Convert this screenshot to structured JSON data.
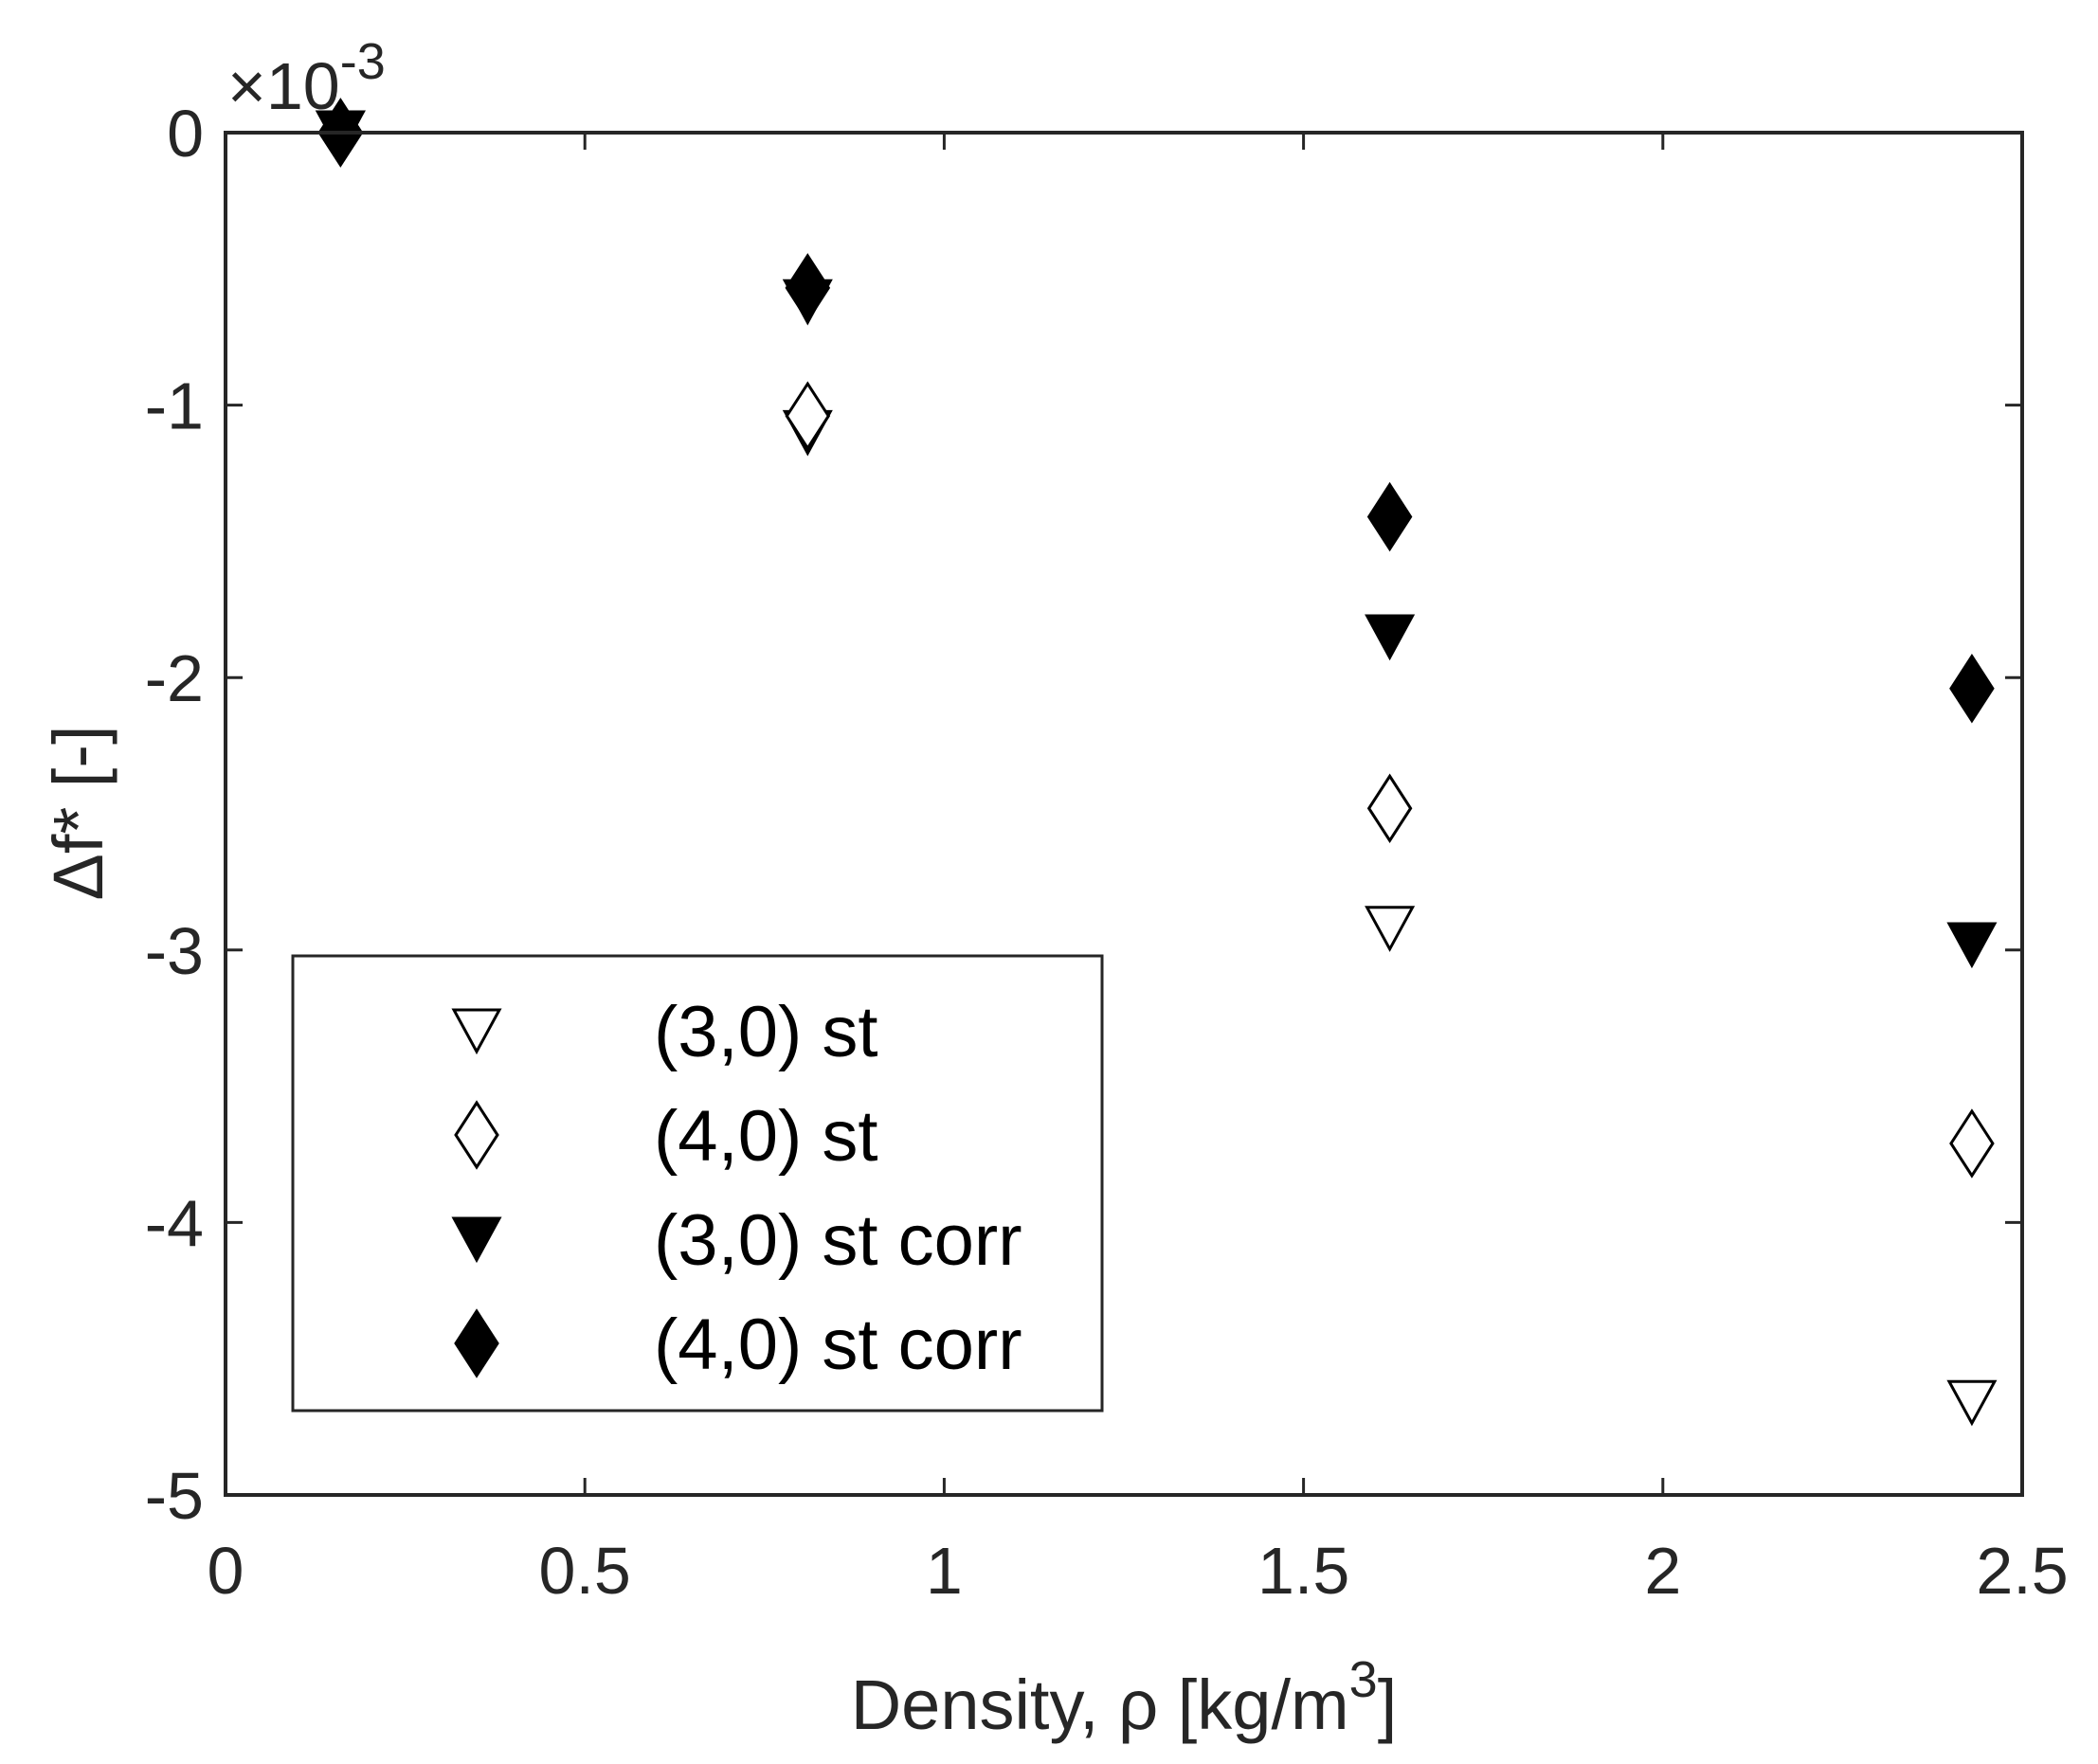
{
  "chart_data": {
    "type": "scatter",
    "title": "",
    "xlabel": "Density, ρ [kg/m",
    "xlabel_sup": "3",
    "xlabel_end": "]",
    "ylabel": "Δf* [-]",
    "y_multiplier": "×10",
    "y_multiplier_exp": "-3",
    "xlim": [
      0,
      2.5
    ],
    "ylim": [
      -5,
      0
    ],
    "xticks": [
      "0",
      "0.5",
      "1",
      "1.5",
      "2",
      "2.5"
    ],
    "yticks": [
      "0",
      "-1",
      "-2",
      "-3",
      "-4",
      "-5"
    ],
    "legend_position": "lower-left",
    "grid": false,
    "series": [
      {
        "name": "(3,0) st",
        "marker": "triangle-down",
        "filled": false,
        "x": [
          0.16,
          0.81,
          1.62,
          2.43
        ],
        "y": [
          0,
          -1.1,
          -2.92,
          -4.66
        ]
      },
      {
        "name": "(4,0) st",
        "marker": "diamond",
        "filled": false,
        "x": [
          0.16,
          0.81,
          1.62,
          2.43
        ],
        "y": [
          0,
          -1.04,
          -2.48,
          -3.71
        ]
      },
      {
        "name": "(3,0) st corr",
        "marker": "triangle-down",
        "filled": true,
        "x": [
          0.16,
          0.81,
          1.62,
          2.43
        ],
        "y": [
          0,
          -0.62,
          -1.85,
          -2.98
        ]
      },
      {
        "name": "(4,0) st corr",
        "marker": "diamond",
        "filled": true,
        "x": [
          0.16,
          0.81,
          1.62,
          2.43
        ],
        "y": [
          0,
          -0.57,
          -1.41,
          -2.04
        ]
      }
    ]
  }
}
